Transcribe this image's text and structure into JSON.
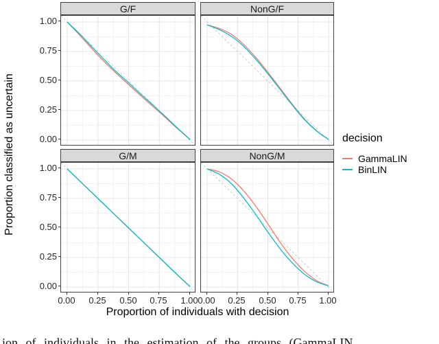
{
  "chart_data": {
    "type": "line",
    "title": "",
    "xlabel": "Proportion of individuals with decision",
    "ylabel": "Proportion classified as uncertain",
    "xlim": [
      0,
      1
    ],
    "ylim": [
      0,
      1
    ],
    "grid": "major and minor, light gray on white (theme_bw)",
    "x_tick_labels": [
      "0.00",
      "0.25",
      "0.50",
      "0.75",
      "1.00"
    ],
    "x_tick_values": [
      0,
      0.25,
      0.5,
      0.75,
      1
    ],
    "y_tick_labels": [
      "0.00",
      "0.25",
      "0.50",
      "0.75",
      "1.00"
    ],
    "y_tick_values": [
      0,
      0.25,
      0.5,
      0.75,
      1
    ],
    "legend": {
      "title": "decision",
      "position": "right",
      "entries": [
        {
          "label": "GammaLIN",
          "color": "#F8766D"
        },
        {
          "label": "BinLIN",
          "color": "#00BFC4"
        }
      ]
    },
    "reference_line": {
      "type": "abline",
      "from": [
        0,
        1
      ],
      "to": [
        1,
        0
      ],
      "style": "dashed",
      "color": "#c9c9c9"
    },
    "x": [
      0,
      0.1,
      0.2,
      0.3,
      0.4,
      0.5,
      0.6,
      0.7,
      0.8,
      0.9,
      1
    ],
    "facets": [
      {
        "label": "G/F",
        "series": [
          {
            "name": "GammaLIN",
            "color": "#F8766D",
            "y": [
              1.0,
              0.89,
              0.775,
              0.665,
              0.565,
              0.47,
              0.375,
              0.283,
              0.19,
              0.095,
              0.005
            ]
          },
          {
            "name": "BinLIN",
            "color": "#00BFC4",
            "y": [
              1.0,
              0.9,
              0.79,
              0.682,
              0.578,
              0.485,
              0.388,
              0.295,
              0.198,
              0.1,
              0.005
            ]
          }
        ]
      },
      {
        "label": "NonG/F",
        "series": [
          {
            "name": "GammaLIN",
            "color": "#F8766D",
            "y": [
              0.975,
              0.945,
              0.895,
              0.81,
              0.7,
              0.575,
              0.44,
              0.305,
              0.18,
              0.08,
              0.005
            ]
          },
          {
            "name": "BinLIN",
            "color": "#00BFC4",
            "y": [
              0.975,
              0.935,
              0.878,
              0.795,
              0.685,
              0.562,
              0.43,
              0.298,
              0.175,
              0.078,
              0.005
            ]
          }
        ]
      },
      {
        "label": "G/M",
        "series": [
          {
            "name": "GammaLIN",
            "color": "#F8766D",
            "y": [
              1.0,
              0.9,
              0.8,
              0.7,
              0.6,
              0.5,
              0.4,
              0.3,
              0.2,
              0.1,
              0.005
            ]
          },
          {
            "name": "BinLIN",
            "color": "#00BFC4",
            "y": [
              1.0,
              0.9,
              0.8,
              0.7,
              0.6,
              0.5,
              0.4,
              0.3,
              0.2,
              0.1,
              0.005
            ]
          }
        ]
      },
      {
        "label": "NonG/M",
        "series": [
          {
            "name": "GammaLIN",
            "color": "#F8766D",
            "y": [
              1.0,
              0.975,
              0.915,
              0.815,
              0.685,
              0.535,
              0.38,
              0.245,
              0.135,
              0.055,
              0.01
            ]
          },
          {
            "name": "BinLIN",
            "color": "#00BFC4",
            "y": [
              1.0,
              0.955,
              0.875,
              0.755,
              0.615,
              0.465,
              0.325,
              0.205,
              0.11,
              0.045,
              0.01
            ]
          }
        ]
      }
    ]
  },
  "caption": {
    "fragment": "ion of individuals in the estimation of the groups (GammaLIN"
  }
}
